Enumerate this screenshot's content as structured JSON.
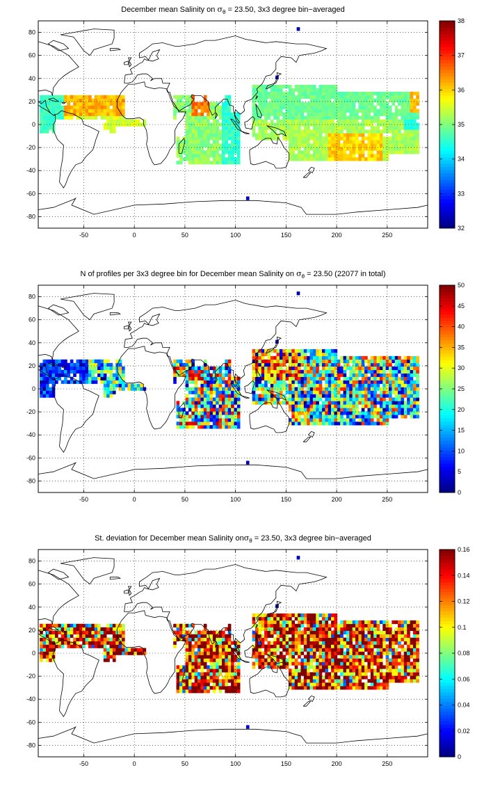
{
  "figure": {
    "panels": [
      {
        "id": "mean",
        "title_pre": "December mean Salinity on ",
        "title_sigma": "σ",
        "title_sub": "θ",
        "title_post": " = 23.50, 3x3 degree bin−averaged",
        "colorbar_ticks": [
          "32",
          "33",
          "34",
          "35",
          "36",
          "37",
          "38"
        ],
        "colorbar_min": 32,
        "colorbar_max": 38,
        "colormap": "jet"
      },
      {
        "id": "count",
        "title_pre": "N of profiles per 3x3 degree bin for December mean Salinity on ",
        "title_sigma": "σ",
        "title_sub": "θ",
        "title_post": " = 23.50 (22077 in total)",
        "colorbar_ticks": [
          "0",
          "5",
          "10",
          "15",
          "20",
          "25",
          "30",
          "35",
          "40",
          "45",
          "50"
        ],
        "colorbar_min": 0,
        "colorbar_max": 50,
        "colormap": "jet"
      },
      {
        "id": "std",
        "title_pre": "St. deviation for December mean Salinity on",
        "title_sigma": "σ",
        "title_sub": "θ",
        "title_post": " = 23.50, 3x3 degree bin−averaged",
        "colorbar_ticks": [
          "0",
          "0.02",
          "0.04",
          "0.06",
          "0.08",
          "0.1",
          "0.12",
          "0.14",
          "0.16"
        ],
        "colorbar_min": 0,
        "colorbar_max": 0.16,
        "colormap": "jet"
      }
    ],
    "x_ticks": [
      "-50",
      "0",
      "50",
      "100",
      "150",
      "200",
      "250"
    ],
    "y_ticks": [
      "80",
      "60",
      "40",
      "20",
      "0",
      "-20",
      "-40",
      "-60",
      "-80"
    ],
    "grid": "dotted"
  },
  "chart_data": [
    {
      "type": "heatmap",
      "title": "December mean Salinity on σθ = 23.50, 3x3 degree bin−averaged",
      "xlim": [
        -95,
        290
      ],
      "ylim": [
        -90,
        90
      ],
      "clim": [
        32,
        38
      ],
      "regions": [
        {
          "lon": [
            -92,
            -65
          ],
          "lat": [
            -8,
            16
          ],
          "value": 34.6
        },
        {
          "lon": [
            -70,
            -40
          ],
          "lat": [
            10,
            25
          ],
          "value": 36.3
        },
        {
          "lon": [
            -40,
            -10
          ],
          "lat": [
            2,
            20
          ],
          "value": 36.0
        },
        {
          "lon": [
            -10,
            10
          ],
          "lat": [
            -2,
            8
          ],
          "value": 35.6
        },
        {
          "lon": [
            50,
            75
          ],
          "lat": [
            5,
            25
          ],
          "value": 36.5
        },
        {
          "lon": [
            40,
            100
          ],
          "lat": [
            -30,
            10
          ],
          "value": 35.0
        },
        {
          "lon": [
            100,
            130
          ],
          "lat": [
            -20,
            10
          ],
          "value": 34.8
        },
        {
          "lon": [
            120,
            200
          ],
          "lat": [
            5,
            30
          ],
          "value": 34.9
        },
        {
          "lon": [
            130,
            280
          ],
          "lat": [
            -30,
            5
          ],
          "value": 35.4
        },
        {
          "lon": [
            190,
            240
          ],
          "lat": [
            -28,
            -10
          ],
          "value": 36.1
        },
        {
          "lon": [
            270,
            290
          ],
          "lat": [
            10,
            25
          ],
          "value": 36.2
        }
      ]
    },
    {
      "type": "heatmap",
      "title": "N of profiles per 3x3 degree bin for December mean Salinity on σθ = 23.50 (22077 in total)",
      "xlim": [
        -95,
        290
      ],
      "ylim": [
        -90,
        90
      ],
      "clim": [
        0,
        50
      ],
      "total": 22077,
      "regions": [
        {
          "lon": [
            -92,
            -40
          ],
          "lat": [
            -8,
            25
          ],
          "value": 8
        },
        {
          "lon": [
            -40,
            10
          ],
          "lat": [
            -5,
            20
          ],
          "value": 18
        },
        {
          "lon": [
            40,
            100
          ],
          "lat": [
            -35,
            25
          ],
          "value": 25
        },
        {
          "lon": [
            120,
            160
          ],
          "lat": [
            10,
            35
          ],
          "value": 40
        },
        {
          "lon": [
            130,
            280
          ],
          "lat": [
            -30,
            30
          ],
          "value": 22
        }
      ]
    },
    {
      "type": "heatmap",
      "title": "St. deviation for December mean Salinity on σθ = 23.50, 3x3 degree bin−averaged",
      "xlim": [
        -95,
        290
      ],
      "ylim": [
        -90,
        90
      ],
      "clim": [
        0,
        0.16
      ],
      "regions": [
        {
          "lon": [
            -92,
            -40
          ],
          "lat": [
            -8,
            25
          ],
          "value": 0.13
        },
        {
          "lon": [
            -40,
            10
          ],
          "lat": [
            -5,
            20
          ],
          "value": 0.15
        },
        {
          "lon": [
            40,
            100
          ],
          "lat": [
            -30,
            25
          ],
          "value": 0.14
        },
        {
          "lon": [
            120,
            280
          ],
          "lat": [
            -30,
            35
          ],
          "value": 0.13
        }
      ]
    }
  ]
}
